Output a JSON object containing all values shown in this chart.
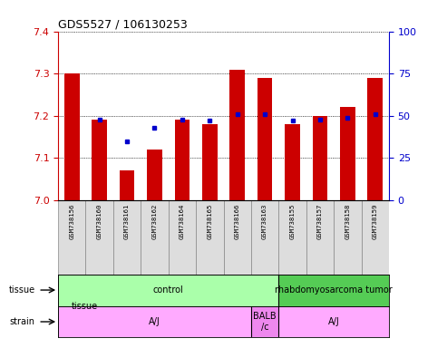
{
  "title": "GDS5527 / 106130253",
  "samples": [
    "GSM738156",
    "GSM738160",
    "GSM738161",
    "GSM738162",
    "GSM738164",
    "GSM738165",
    "GSM738166",
    "GSM738163",
    "GSM738155",
    "GSM738157",
    "GSM738158",
    "GSM738159"
  ],
  "transformed_counts": [
    7.3,
    7.19,
    7.07,
    7.12,
    7.19,
    7.18,
    7.31,
    7.29,
    7.18,
    7.2,
    7.22,
    7.29
  ],
  "percentile_ranks": [
    null,
    48,
    35,
    43,
    48,
    47,
    51,
    51,
    47,
    48,
    49,
    51
  ],
  "ylim_left": [
    7.0,
    7.4
  ],
  "ylim_right": [
    0,
    100
  ],
  "yticks_left": [
    7.0,
    7.1,
    7.2,
    7.3,
    7.4
  ],
  "yticks_right": [
    0,
    25,
    50,
    75,
    100
  ],
  "bar_color": "#cc0000",
  "dot_color": "#0000cc",
  "bar_bottom": 7.0,
  "tissue_groups": [
    {
      "label": "control",
      "start": 0,
      "end": 8,
      "color": "#aaffaa"
    },
    {
      "label": "rhabdomyosarcoma tumor",
      "start": 8,
      "end": 12,
      "color": "#55cc55"
    }
  ],
  "strain_groups": [
    {
      "label": "A/J",
      "start": 0,
      "end": 7,
      "color": "#ffaaff"
    },
    {
      "label": "BALB\n/c",
      "start": 7,
      "end": 8,
      "color": "#ee88ee"
    },
    {
      "label": "A/J",
      "start": 8,
      "end": 12,
      "color": "#ffaaff"
    }
  ],
  "tick_color_left": "#cc0000",
  "tick_color_right": "#0000cc",
  "sample_box_color": "#dddddd",
  "sample_box_edge": "#888888"
}
